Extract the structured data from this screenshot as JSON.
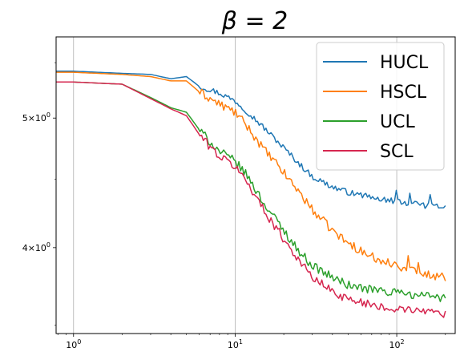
{
  "chart_data": {
    "type": "line",
    "title": "β = 2",
    "xlabel": "",
    "ylabel": "",
    "xscale": "log",
    "yscale": "log",
    "xlim": [
      0.78,
      230
    ],
    "ylim": [
      3.45,
      5.75
    ],
    "grid": "x-major",
    "legend_position": "top-right",
    "x_ticks": [
      {
        "value": 1,
        "base": "10",
        "exp": "0"
      },
      {
        "value": 10,
        "base": "10",
        "exp": "1"
      },
      {
        "value": 100,
        "base": "10",
        "exp": "2"
      }
    ],
    "y_ticks": [
      {
        "value": 4,
        "mant": "4",
        "base": "10",
        "exp": "0"
      },
      {
        "value": 5,
        "mant": "5",
        "base": "10",
        "exp": "0"
      }
    ],
    "series": [
      {
        "name": "HUCL",
        "color": "#1f77b4",
        "x": [
          0.78,
          1,
          2,
          3,
          4,
          5,
          6,
          7,
          8,
          10,
          12,
          15,
          20,
          25,
          30,
          40,
          50,
          70,
          100,
          150,
          200
        ],
        "y": [
          5.42,
          5.42,
          5.4,
          5.39,
          5.35,
          5.37,
          5.28,
          5.25,
          5.22,
          5.15,
          5.05,
          4.92,
          4.75,
          4.62,
          4.52,
          4.44,
          4.4,
          4.36,
          4.33,
          4.3,
          4.29
        ],
        "noise": 0.01
      },
      {
        "name": "HSCL",
        "color": "#ff7f0e",
        "x": [
          0.78,
          1,
          2,
          3,
          4,
          5,
          6,
          7,
          8,
          10,
          12,
          15,
          20,
          25,
          30,
          40,
          50,
          70,
          100,
          150,
          200
        ],
        "y": [
          5.41,
          5.41,
          5.39,
          5.37,
          5.33,
          5.33,
          5.23,
          5.17,
          5.12,
          5.05,
          4.92,
          4.74,
          4.55,
          4.4,
          4.27,
          4.12,
          4.03,
          3.94,
          3.88,
          3.82,
          3.8
        ],
        "noise": 0.015
      },
      {
        "name": "UCL",
        "color": "#2ca02c",
        "x": [
          0.78,
          1,
          2,
          3,
          4,
          5,
          6,
          7,
          8,
          10,
          12,
          15,
          20,
          25,
          30,
          40,
          50,
          70,
          100,
          150,
          200
        ],
        "y": [
          5.32,
          5.32,
          5.3,
          5.18,
          5.09,
          5.05,
          4.9,
          4.8,
          4.72,
          4.64,
          4.52,
          4.32,
          4.12,
          3.97,
          3.88,
          3.8,
          3.75,
          3.72,
          3.7,
          3.68,
          3.67
        ],
        "noise": 0.015
      },
      {
        "name": "SCL",
        "color": "#d62750",
        "x": [
          0.78,
          1,
          2,
          3,
          4,
          5,
          6,
          7,
          8,
          10,
          12,
          15,
          20,
          25,
          30,
          40,
          50,
          70,
          100,
          150,
          200
        ],
        "y": [
          5.32,
          5.32,
          5.3,
          5.17,
          5.08,
          5.02,
          4.86,
          4.76,
          4.68,
          4.6,
          4.47,
          4.27,
          4.06,
          3.91,
          3.8,
          3.71,
          3.66,
          3.63,
          3.6,
          3.58,
          3.57
        ],
        "noise": 0.015
      }
    ]
  }
}
